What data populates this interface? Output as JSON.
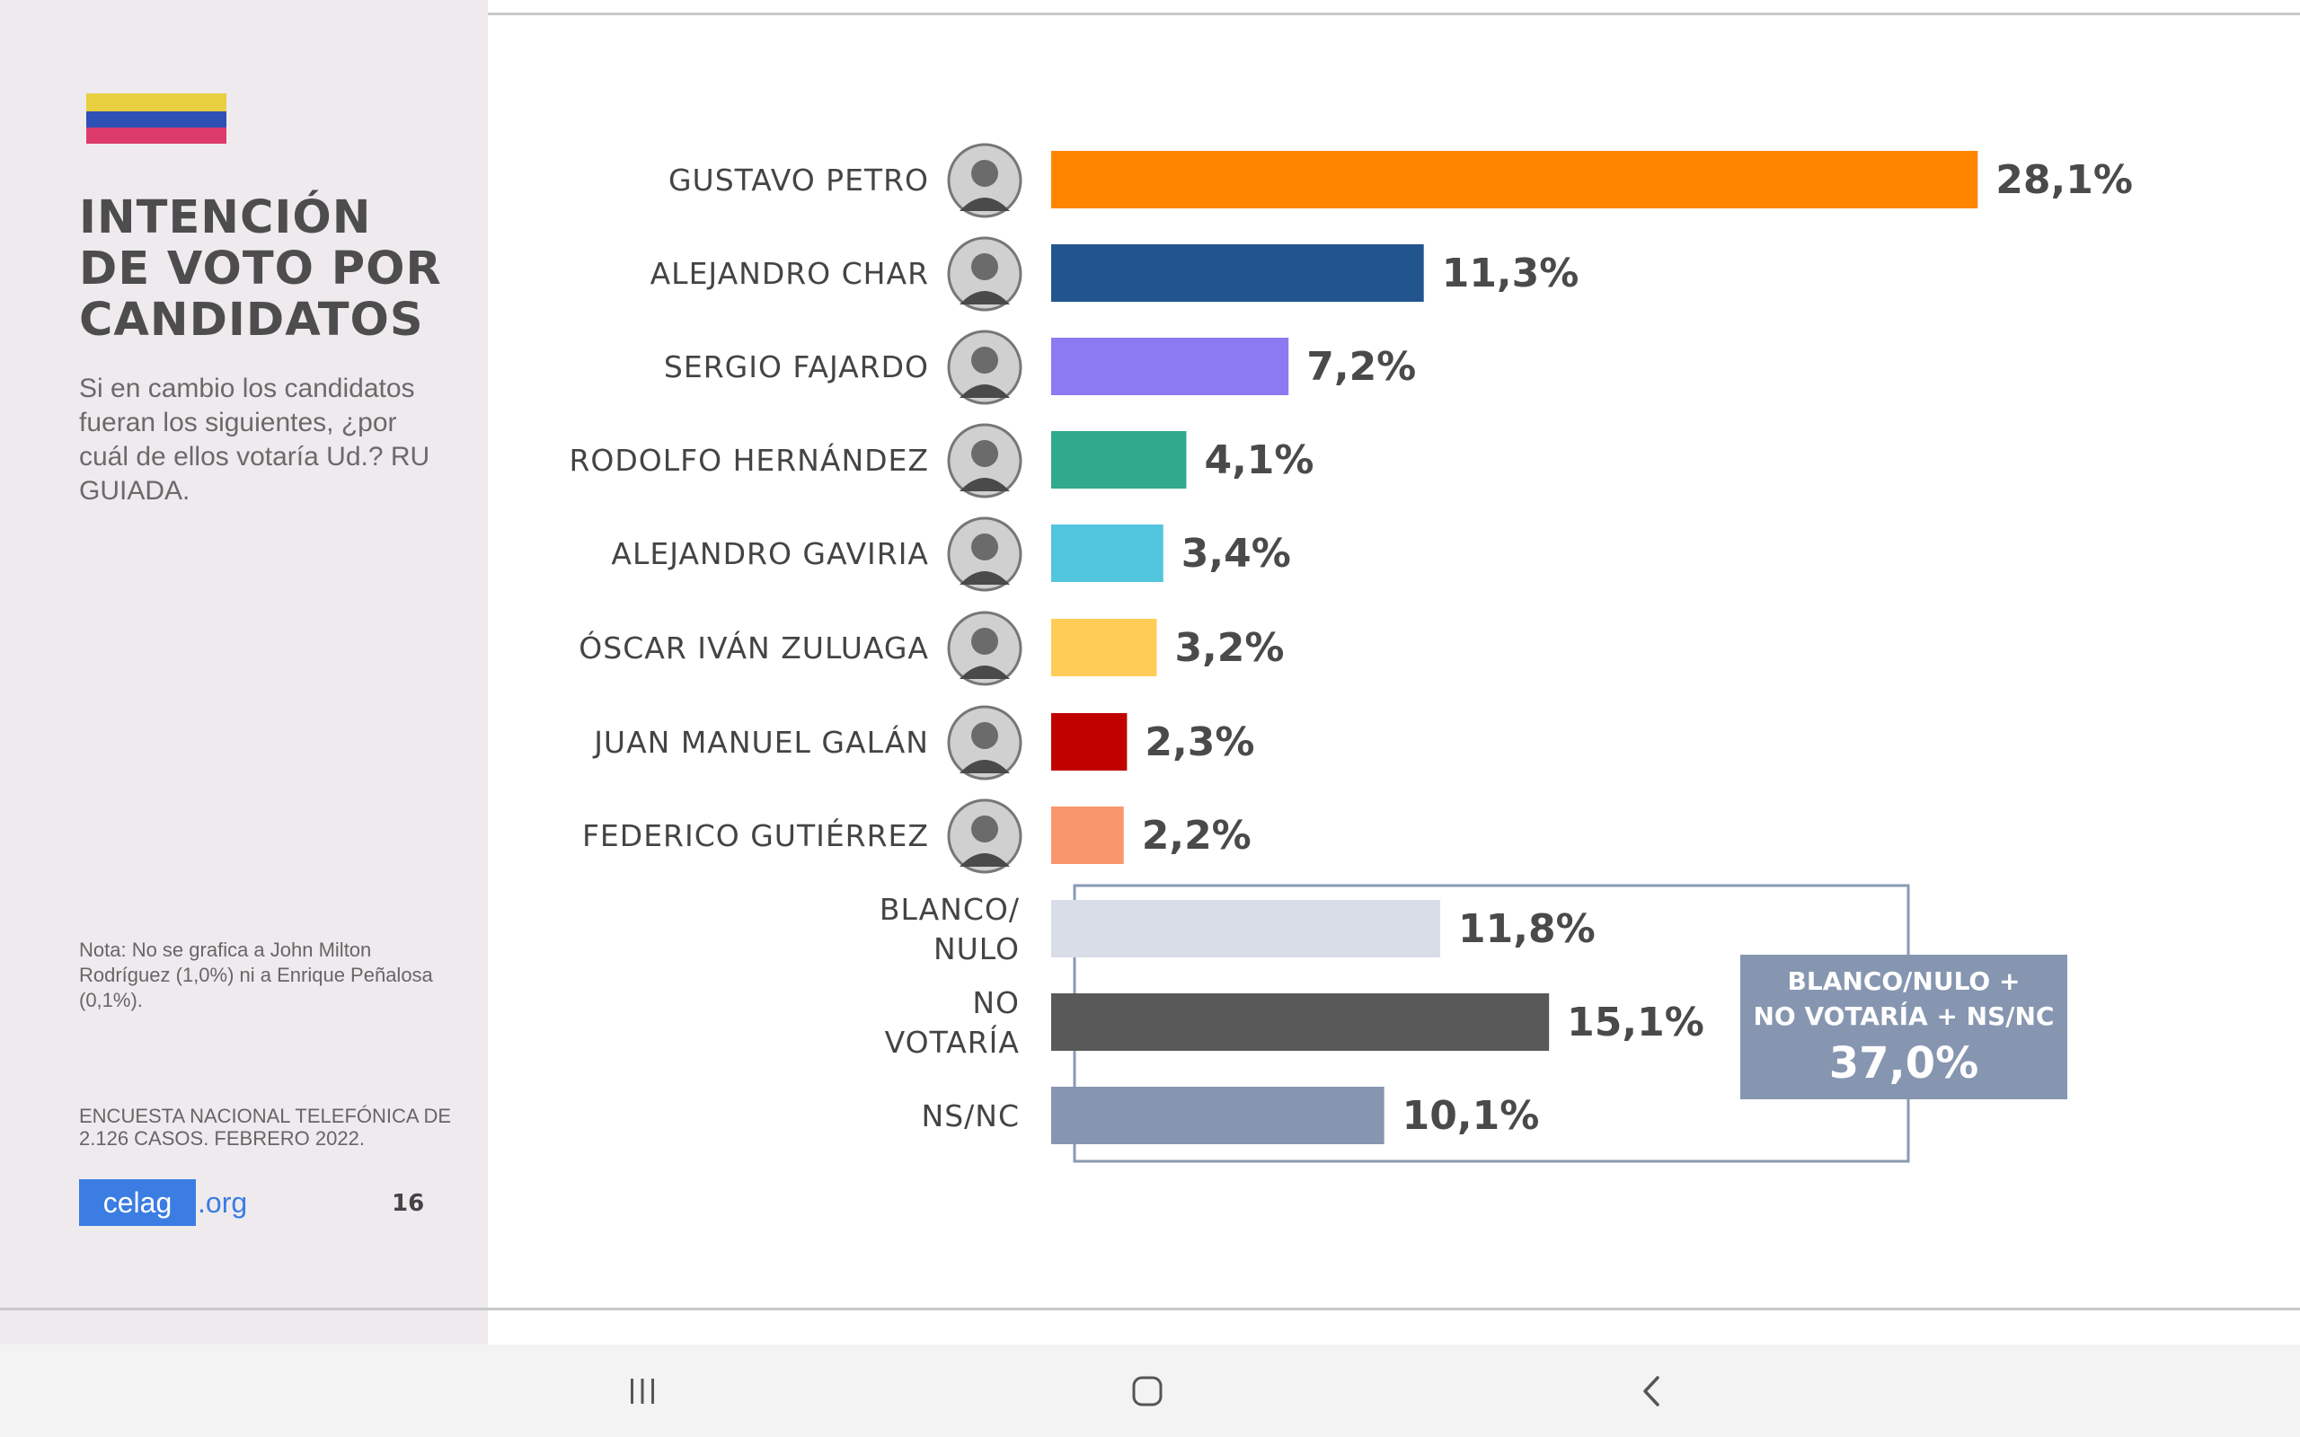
{
  "sidebar": {
    "title": "INTENCIÓN DE VOTO POR CANDIDATOS",
    "subtitle": "Si en cambio los candidatos fueran los siguientes, ¿por cuál de ellos votaría Ud.? RU GUIADA.",
    "note": "Nota: No se grafica a John Milton Rodríguez (1,0%) ni a Enrique Peñalosa (0,1%).",
    "survey": "ENCUESTA NACIONAL TELEFÓNICA DE 2.126 CASOS. FEBRERO 2022.",
    "logo_main": "celag",
    "logo_tld": ".org",
    "page_number": "16",
    "flag_colors": [
      "#e8cf3f",
      "#2f50b5",
      "#de3b6c"
    ]
  },
  "chart_data": {
    "type": "bar",
    "orientation": "horizontal",
    "categories": [
      "GUSTAVO PETRO",
      "ALEJANDRO CHAR",
      "SERGIO FAJARDO",
      "RODOLFO HERNÁNDEZ",
      "ALEJANDRO GAVIRIA",
      "ÓSCAR IVÁN ZULUAGA",
      "JUAN MANUEL GALÁN",
      "FEDERICO GUTIÉRREZ",
      "BLANCO/ NULO",
      "NO VOTARÍA",
      "NS/NC"
    ],
    "values": [
      28.1,
      11.3,
      7.2,
      4.1,
      3.4,
      3.2,
      2.3,
      2.2,
      11.8,
      15.1,
      10.1
    ],
    "value_labels": [
      "28,1%",
      "11,3%",
      "7,2%",
      "4,1%",
      "3,4%",
      "3,2%",
      "2,3%",
      "2,2%",
      "11,8%",
      "15,1%",
      "10,1%"
    ],
    "colors": [
      "#ff8400",
      "#22548e",
      "#8c7af2",
      "#31a98d",
      "#52c5df",
      "#ffcc58",
      "#c10000",
      "#f9966e",
      "#d8dde8",
      "#595959",
      "#8696b0"
    ],
    "has_photo": [
      true,
      true,
      true,
      true,
      true,
      true,
      true,
      true,
      false,
      false,
      false
    ],
    "summary_box": {
      "lines": [
        "BLANCO/NULO +",
        "NO VOTARÍA + NS/NC"
      ],
      "total_label": "37,0%",
      "total_value": 37.0,
      "color": "#8696b0"
    },
    "grid": false,
    "legend": "none"
  },
  "navbar": {
    "icons": [
      "recent-apps-icon",
      "home-icon",
      "back-icon"
    ]
  }
}
